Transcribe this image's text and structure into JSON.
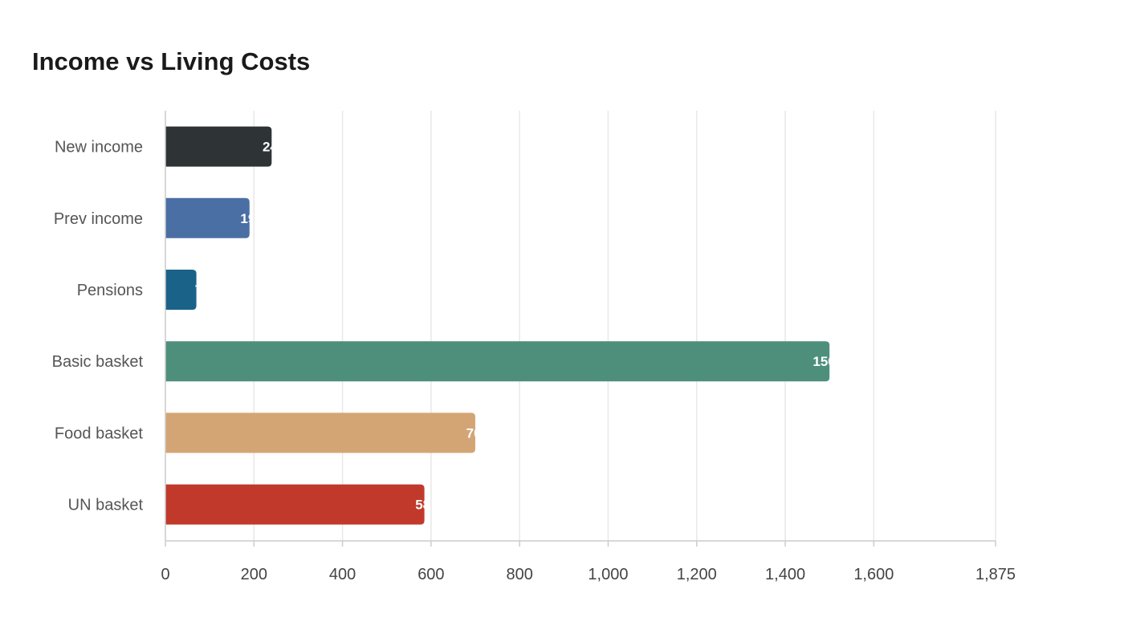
{
  "chart_data": {
    "type": "bar",
    "orientation": "horizontal",
    "title": "Income vs Living Costs",
    "xlabel": "",
    "ylabel": "",
    "categories": [
      "New income",
      "Prev income",
      "Pensions",
      "Basic basket",
      "Food basket",
      "UN basket"
    ],
    "values": [
      240,
      190,
      70,
      1500,
      700,
      585
    ],
    "colors": [
      "#2e3436",
      "#4a6fa5",
      "#1b6289",
      "#4e8f7b",
      "#d4a574",
      "#c0392b"
    ],
    "xlim": [
      0,
      1875
    ],
    "xticks": [
      0,
      200,
      400,
      600,
      800,
      1000,
      1200,
      1400,
      1600,
      1875
    ],
    "xtick_labels": [
      "0",
      "200",
      "400",
      "600",
      "800",
      "1,000",
      "1,200",
      "1,400",
      "1,600",
      "1,875"
    ],
    "grid": true,
    "legend": "none"
  }
}
